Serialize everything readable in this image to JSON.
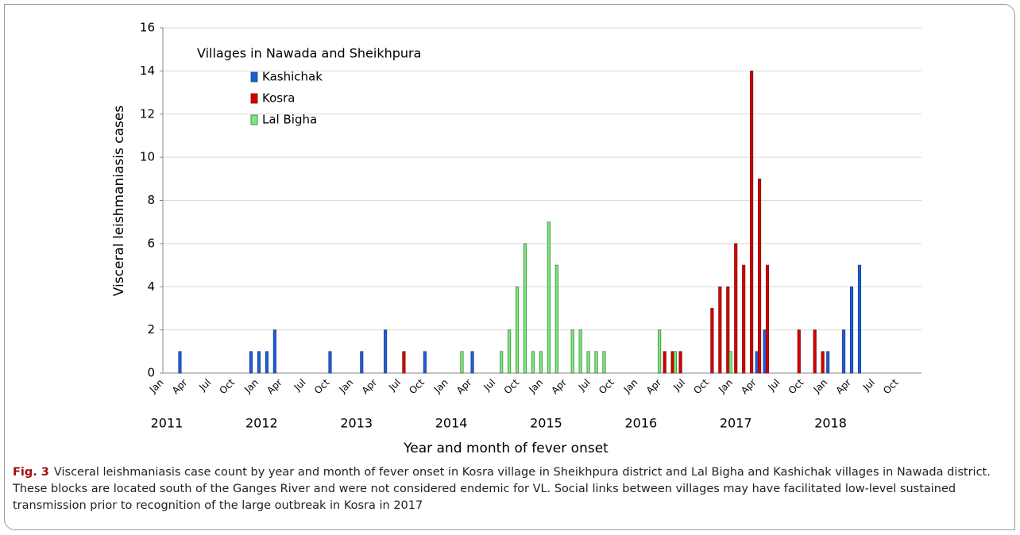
{
  "chart_data": {
    "type": "bar",
    "y_label": "Visceral leishmaniasis cases",
    "x_label": "Year and month of fever onset",
    "legend_title": "Villages in Nawada and Sheikhpura",
    "legend": "upper left",
    "grid": true,
    "ylim": [
      0,
      16
    ],
    "yticks": [
      0,
      2,
      4,
      6,
      8,
      10,
      12,
      14,
      16
    ],
    "years": [
      "2011",
      "2012",
      "2013",
      "2014",
      "2015",
      "2016",
      "2017",
      "2018"
    ],
    "categories": [
      "Jan",
      null,
      null,
      "Apr",
      null,
      null,
      "Jul",
      null,
      null,
      "Oct",
      null,
      null,
      "Jan",
      null,
      null,
      "Apr",
      null,
      null,
      "Jul",
      null,
      null,
      "Oct",
      null,
      null,
      "Jan",
      null,
      null,
      "Apr",
      null,
      null,
      "Jul",
      null,
      null,
      "Oct",
      null,
      null,
      "Jan",
      null,
      null,
      "Apr",
      null,
      null,
      "Jul",
      null,
      null,
      "Oct",
      null,
      null,
      "Jan",
      null,
      null,
      "Apr",
      null,
      null,
      "Jul",
      null,
      null,
      "Oct",
      null,
      null,
      "Jan",
      null,
      null,
      "Apr",
      null,
      null,
      "Jul",
      null,
      null,
      "Oct",
      null,
      null,
      "Jan",
      null,
      null,
      "Apr",
      null,
      null,
      "Jul",
      null,
      null,
      "Oct",
      null,
      null,
      "Jan",
      null,
      null,
      "Apr",
      null,
      null,
      "Jul",
      null,
      null,
      "Oct",
      null,
      null
    ],
    "series": [
      {
        "name": "Kashichak",
        "color": "#1f5fd6",
        "values": [
          0,
          0,
          1,
          0,
          0,
          0,
          0,
          0,
          0,
          0,
          0,
          1,
          1,
          1,
          2,
          0,
          0,
          0,
          0,
          0,
          0,
          1,
          0,
          0,
          0,
          1,
          0,
          0,
          2,
          0,
          0,
          0,
          0,
          1,
          0,
          0,
          0,
          0,
          0,
          1,
          0,
          0,
          0,
          0,
          0,
          0,
          0,
          0,
          0,
          0,
          0,
          0,
          0,
          0,
          0,
          0,
          0,
          0,
          0,
          0,
          0,
          0,
          0,
          0,
          0,
          0,
          0,
          0,
          0,
          0,
          0,
          0,
          0,
          0,
          0,
          1,
          2,
          0,
          0,
          0,
          0,
          0,
          0,
          0,
          1,
          0,
          2,
          4,
          5,
          0,
          0,
          0,
          0,
          0,
          0,
          0
        ]
      },
      {
        "name": "Kosra",
        "color": "#d40000",
        "values": [
          0,
          0,
          0,
          0,
          0,
          0,
          0,
          0,
          0,
          0,
          0,
          0,
          0,
          0,
          0,
          0,
          0,
          0,
          0,
          0,
          0,
          0,
          0,
          0,
          0,
          0,
          0,
          0,
          0,
          0,
          1,
          0,
          0,
          0,
          0,
          0,
          0,
          0,
          0,
          0,
          0,
          0,
          0,
          0,
          0,
          0,
          0,
          0,
          0,
          0,
          0,
          0,
          0,
          0,
          0,
          0,
          0,
          0,
          0,
          0,
          0,
          0,
          0,
          1,
          1,
          1,
          0,
          0,
          0,
          3,
          4,
          4,
          6,
          5,
          14,
          9,
          5,
          0,
          0,
          0,
          2,
          0,
          2,
          1,
          0,
          0,
          0,
          0,
          0,
          0,
          0,
          0,
          0,
          0,
          0,
          0
        ]
      },
      {
        "name": "Lal Bigha",
        "color": "#7de87d",
        "values": [
          0,
          0,
          0,
          0,
          0,
          0,
          0,
          0,
          0,
          0,
          0,
          0,
          0,
          0,
          0,
          0,
          0,
          0,
          0,
          0,
          0,
          0,
          0,
          0,
          0,
          0,
          0,
          0,
          0,
          0,
          0,
          0,
          0,
          0,
          0,
          0,
          0,
          1,
          0,
          0,
          0,
          0,
          1,
          2,
          4,
          6,
          1,
          1,
          7,
          5,
          0,
          2,
          2,
          1,
          1,
          1,
          0,
          0,
          0,
          0,
          0,
          0,
          2,
          0,
          1,
          0,
          0,
          0,
          0,
          0,
          0,
          1,
          0,
          0,
          0,
          0,
          0,
          0,
          0,
          0,
          0,
          0,
          0,
          0,
          0,
          0,
          0,
          0,
          0,
          0,
          0,
          0,
          0,
          0,
          0,
          0
        ]
      }
    ]
  },
  "caption": {
    "label": "Fig. 3",
    "text": "Visceral leishmaniasis case count by year and month of fever onset in Kosra village in Sheikhpura district and Lal Bigha and Kashichak villages in Nawada district. These blocks are located south of the Ganges River and were not considered endemic for VL. Social links between villages may have facilitated low-level sustained transmission prior to recognition of the large outbreak in Kosra in 2017"
  }
}
